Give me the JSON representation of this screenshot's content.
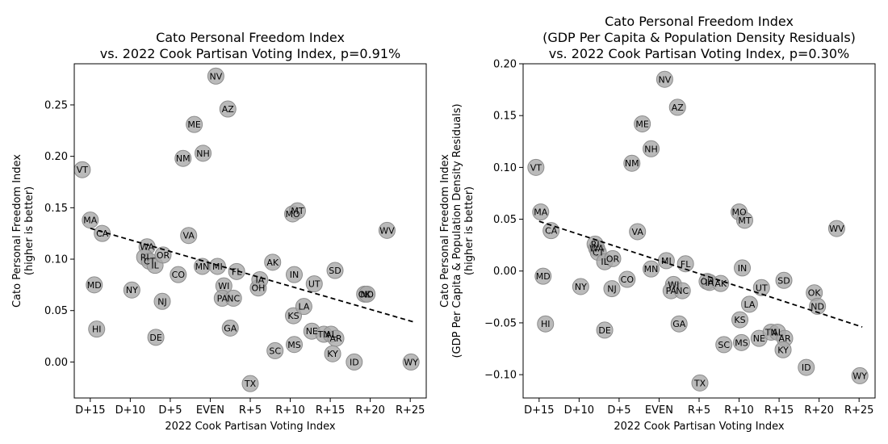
{
  "chart_data": [
    {
      "type": "scatter",
      "title": [
        "Cato Personal Freedom Index",
        "vs. 2022 Cook Partisan Voting Index, p=0.91%"
      ],
      "xlabel": "2022 Cook Partisan Voting Index",
      "ylabel": [
        "Cato Personal Freedom Index",
        "(higher is better)"
      ],
      "xlim": [
        -17,
        27
      ],
      "ylim": [
        -0.035,
        0.29
      ],
      "xticks": [
        {
          "v": -15,
          "label": "D+15"
        },
        {
          "v": -10,
          "label": "D+10"
        },
        {
          "v": -5,
          "label": "D+5"
        },
        {
          "v": 0,
          "label": "EVEN"
        },
        {
          "v": 5,
          "label": "R+5"
        },
        {
          "v": 10,
          "label": "R+10"
        },
        {
          "v": 15,
          "label": "R+15"
        },
        {
          "v": 20,
          "label": "R+20"
        },
        {
          "v": 25,
          "label": "R+25"
        }
      ],
      "yticks": [
        {
          "v": 0.0,
          "label": "0.00"
        },
        {
          "v": 0.05,
          "label": "0.05"
        },
        {
          "v": 0.1,
          "label": "0.10"
        },
        {
          "v": 0.15,
          "label": "0.15"
        },
        {
          "v": 0.2,
          "label": "0.20"
        },
        {
          "v": 0.25,
          "label": "0.25"
        }
      ],
      "trendline": {
        "x": [
          -15,
          25.4
        ],
        "y": [
          0.13,
          0.039
        ],
        "style": "dashed"
      },
      "points": [
        {
          "label": "VT",
          "x": -16.0,
          "y": 0.187
        },
        {
          "label": "MA",
          "x": -15.0,
          "y": 0.138
        },
        {
          "label": "CA",
          "x": -13.5,
          "y": 0.125
        },
        {
          "label": "MD",
          "x": -14.5,
          "y": 0.075
        },
        {
          "label": "HI",
          "x": -14.2,
          "y": 0.032
        },
        {
          "label": "NY",
          "x": -9.8,
          "y": 0.07
        },
        {
          "label": "WA",
          "x": -7.9,
          "y": 0.112
        },
        {
          "label": "RI",
          "x": -8.2,
          "y": 0.102
        },
        {
          "label": "CT",
          "x": -7.6,
          "y": 0.098
        },
        {
          "label": "IL",
          "x": -6.9,
          "y": 0.094
        },
        {
          "label": "OR",
          "x": -5.9,
          "y": 0.104
        },
        {
          "label": "DE",
          "x": -6.8,
          "y": 0.024
        },
        {
          "label": "NJ",
          "x": -6.0,
          "y": 0.059
        },
        {
          "label": "CO",
          "x": -4.0,
          "y": 0.085
        },
        {
          "label": "VA",
          "x": -2.7,
          "y": 0.123
        },
        {
          "label": "NM",
          "x": -3.4,
          "y": 0.198
        },
        {
          "label": "ME",
          "x": -2.0,
          "y": 0.231
        },
        {
          "label": "NH",
          "x": -0.9,
          "y": 0.203
        },
        {
          "label": "MN",
          "x": -1.0,
          "y": 0.093
        },
        {
          "label": "MI",
          "x": 0.9,
          "y": 0.093
        },
        {
          "label": "NV",
          "x": 0.7,
          "y": 0.278
        },
        {
          "label": "AZ",
          "x": 2.2,
          "y": 0.246
        },
        {
          "label": "WI",
          "x": 1.7,
          "y": 0.074
        },
        {
          "label": "PA",
          "x": 1.5,
          "y": 0.062
        },
        {
          "label": "NC",
          "x": 2.9,
          "y": 0.062
        },
        {
          "label": "GA",
          "x": 2.5,
          "y": 0.033
        },
        {
          "label": "FL",
          "x": 3.3,
          "y": 0.088
        },
        {
          "label": "OH",
          "x": 6.0,
          "y": 0.072
        },
        {
          "label": "IA",
          "x": 6.2,
          "y": 0.08
        },
        {
          "label": "TX",
          "x": 5.0,
          "y": -0.021
        },
        {
          "label": "AK",
          "x": 7.8,
          "y": 0.097
        },
        {
          "label": "SC",
          "x": 8.1,
          "y": 0.011
        },
        {
          "label": "MO",
          "x": 10.3,
          "y": 0.144
        },
        {
          "label": "MT",
          "x": 10.9,
          "y": 0.147
        },
        {
          "label": "IN",
          "x": 10.5,
          "y": 0.085
        },
        {
          "label": "KS",
          "x": 10.4,
          "y": 0.045
        },
        {
          "label": "MS",
          "x": 10.5,
          "y": 0.017
        },
        {
          "label": "LA",
          "x": 11.7,
          "y": 0.054
        },
        {
          "label": "UT",
          "x": 13.0,
          "y": 0.076
        },
        {
          "label": "NE",
          "x": 12.7,
          "y": 0.03
        },
        {
          "label": "TN",
          "x": 14.2,
          "y": 0.027
        },
        {
          "label": "AL",
          "x": 15.1,
          "y": 0.027
        },
        {
          "label": "AR",
          "x": 15.7,
          "y": 0.023
        },
        {
          "label": "SD",
          "x": 15.6,
          "y": 0.089
        },
        {
          "label": "KY",
          "x": 15.3,
          "y": 0.008
        },
        {
          "label": "ID",
          "x": 18.0,
          "y": 0.0
        },
        {
          "label": "OK",
          "x": 19.3,
          "y": 0.066
        },
        {
          "label": "ND",
          "x": 19.6,
          "y": 0.066
        },
        {
          "label": "WV",
          "x": 22.1,
          "y": 0.128
        },
        {
          "label": "WY",
          "x": 25.1,
          "y": 0.0
        }
      ]
    },
    {
      "type": "scatter",
      "title": [
        "Cato Personal Freedom Index",
        "(GDP Per Capita & Population Density Residuals)",
        "vs. 2022 Cook Partisan Voting Index, p=0.30%"
      ],
      "xlabel": "2022 Cook Partisan Voting Index",
      "ylabel": [
        "Cato Personal Freedom Index",
        "(GDP Per Capita & Population Density Residuals)",
        "(higher is better)"
      ],
      "xlim": [
        -17,
        27
      ],
      "ylim": [
        -0.1225,
        0.2
      ],
      "xticks": [
        {
          "v": -15,
          "label": "D+15"
        },
        {
          "v": -10,
          "label": "D+10"
        },
        {
          "v": -5,
          "label": "D+5"
        },
        {
          "v": 0,
          "label": "EVEN"
        },
        {
          "v": 5,
          "label": "R+5"
        },
        {
          "v": 10,
          "label": "R+10"
        },
        {
          "v": 15,
          "label": "R+15"
        },
        {
          "v": 20,
          "label": "R+20"
        },
        {
          "v": 25,
          "label": "R+25"
        }
      ],
      "yticks": [
        {
          "v": -0.1,
          "label": "−0.10"
        },
        {
          "v": -0.05,
          "label": "−0.05"
        },
        {
          "v": 0.0,
          "label": "0.00"
        },
        {
          "v": 0.05,
          "label": "0.05"
        },
        {
          "v": 0.1,
          "label": "0.10"
        },
        {
          "v": 0.15,
          "label": "0.15"
        },
        {
          "v": 0.2,
          "label": "0.20"
        }
      ],
      "trendline": {
        "x": [
          -15,
          25.4
        ],
        "y": [
          0.048,
          -0.054
        ],
        "style": "dashed"
      },
      "points": [
        {
          "label": "VT",
          "x": -15.4,
          "y": 0.1
        },
        {
          "label": "MA",
          "x": -14.8,
          "y": 0.057
        },
        {
          "label": "CA",
          "x": -13.5,
          "y": 0.039
        },
        {
          "label": "MD",
          "x": -14.5,
          "y": -0.005
        },
        {
          "label": "HI",
          "x": -14.2,
          "y": -0.051
        },
        {
          "label": "NY",
          "x": -9.8,
          "y": -0.015
        },
        {
          "label": "RI",
          "x": -8.0,
          "y": 0.026
        },
        {
          "label": "WA",
          "x": -7.8,
          "y": 0.022
        },
        {
          "label": "CT",
          "x": -7.6,
          "y": 0.018
        },
        {
          "label": "IL",
          "x": -6.8,
          "y": 0.009
        },
        {
          "label": "OR",
          "x": -5.8,
          "y": 0.012
        },
        {
          "label": "DE",
          "x": -6.8,
          "y": -0.057
        },
        {
          "label": "NJ",
          "x": -5.9,
          "y": -0.017
        },
        {
          "label": "CO",
          "x": -4.0,
          "y": -0.008
        },
        {
          "label": "VA",
          "x": -2.7,
          "y": 0.038
        },
        {
          "label": "NM",
          "x": -3.4,
          "y": 0.104
        },
        {
          "label": "ME",
          "x": -2.1,
          "y": 0.142
        },
        {
          "label": "NH",
          "x": -1.0,
          "y": 0.118
        },
        {
          "label": "MN",
          "x": -1.0,
          "y": 0.002
        },
        {
          "label": "MI",
          "x": 0.9,
          "y": 0.01
        },
        {
          "label": "NV",
          "x": 0.7,
          "y": 0.185
        },
        {
          "label": "AZ",
          "x": 2.3,
          "y": 0.158
        },
        {
          "label": "WI",
          "x": 1.8,
          "y": -0.013
        },
        {
          "label": "PA",
          "x": 1.5,
          "y": -0.019
        },
        {
          "label": "NC",
          "x": 2.9,
          "y": -0.019
        },
        {
          "label": "GA",
          "x": 2.5,
          "y": -0.051
        },
        {
          "label": "FL",
          "x": 3.3,
          "y": 0.007
        },
        {
          "label": "OH",
          "x": 6.0,
          "y": -0.01
        },
        {
          "label": "IA",
          "x": 6.3,
          "y": -0.011
        },
        {
          "label": "AK",
          "x": 7.7,
          "y": -0.012
        },
        {
          "label": "TX",
          "x": 5.1,
          "y": -0.108
        },
        {
          "label": "SC",
          "x": 8.1,
          "y": -0.071
        },
        {
          "label": "MO",
          "x": 10.0,
          "y": 0.057
        },
        {
          "label": "MT",
          "x": 10.7,
          "y": 0.049
        },
        {
          "label": "IN",
          "x": 10.4,
          "y": 0.003
        },
        {
          "label": "KS",
          "x": 10.1,
          "y": -0.047
        },
        {
          "label": "MS",
          "x": 10.3,
          "y": -0.069
        },
        {
          "label": "LA",
          "x": 11.3,
          "y": -0.032
        },
        {
          "label": "UT",
          "x": 12.8,
          "y": -0.016
        },
        {
          "label": "NE",
          "x": 12.5,
          "y": -0.065
        },
        {
          "label": "TN",
          "x": 14.0,
          "y": -0.059
        },
        {
          "label": "AL",
          "x": 14.8,
          "y": -0.059
        },
        {
          "label": "AR",
          "x": 15.7,
          "y": -0.065
        },
        {
          "label": "KY",
          "x": 15.5,
          "y": -0.076
        },
        {
          "label": "SD",
          "x": 15.6,
          "y": -0.009
        },
        {
          "label": "OK",
          "x": 19.4,
          "y": -0.021
        },
        {
          "label": "ND",
          "x": 19.8,
          "y": -0.034
        },
        {
          "label": "ID",
          "x": 18.4,
          "y": -0.093
        },
        {
          "label": "WV",
          "x": 22.2,
          "y": 0.041
        },
        {
          "label": "WY",
          "x": 25.1,
          "y": -0.101
        }
      ]
    }
  ],
  "colors": {
    "marker_fill": "#a9a9a9",
    "marker_edge": "#8c8c8c",
    "trendline": "#000000"
  }
}
